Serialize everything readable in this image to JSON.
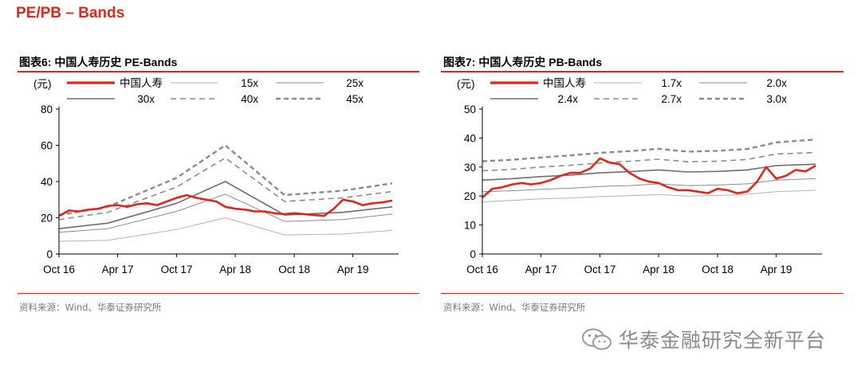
{
  "page_title": "PE/PB – Bands",
  "watermark": "华泰金融研究全新平台",
  "chart_data": [
    {
      "type": "line",
      "title": "图表6:  中国人寿历史 PE-Bands",
      "source": "资料来源：Wind、华泰证券研究所",
      "ylabel": "(元)",
      "ylim": [
        0,
        80
      ],
      "yticks": [
        0,
        20,
        40,
        60,
        80
      ],
      "xlim": [
        "2016-10-01",
        "2019-08-01"
      ],
      "x_ticks": [
        {
          "label": "Oct 16",
          "date": "2016-10-01"
        },
        {
          "label": "Apr 17",
          "date": "2017-04-01"
        },
        {
          "label": "Oct 17",
          "date": "2017-10-01"
        },
        {
          "label": "Apr 18",
          "date": "2018-04-01"
        },
        {
          "label": "Oct 18",
          "date": "2018-10-01"
        },
        {
          "label": "Apr 19",
          "date": "2019-04-01"
        }
      ],
      "grid": false,
      "legend": "top",
      "series": [
        {
          "name": "中国人寿",
          "color": "#e2261b",
          "style": "solid-thick",
          "points": [
            [
              "2016-10-01",
              21
            ],
            [
              "2016-11-01",
              24
            ],
            [
              "2016-12-01",
              23.5
            ],
            [
              "2017-01-01",
              24.5
            ],
            [
              "2017-02-01",
              25
            ],
            [
              "2017-03-01",
              26.5
            ],
            [
              "2017-04-01",
              27
            ],
            [
              "2017-05-01",
              26
            ],
            [
              "2017-06-01",
              27.5
            ],
            [
              "2017-07-01",
              28
            ],
            [
              "2017-08-01",
              27
            ],
            [
              "2017-09-01",
              29
            ],
            [
              "2017-10-01",
              31
            ],
            [
              "2017-11-01",
              32.5
            ],
            [
              "2017-12-01",
              31
            ],
            [
              "2018-01-01",
              30
            ],
            [
              "2018-02-01",
              29
            ],
            [
              "2018-03-01",
              26
            ],
            [
              "2018-04-01",
              25
            ],
            [
              "2018-05-01",
              24.5
            ],
            [
              "2018-06-01",
              23.5
            ],
            [
              "2018-07-01",
              23.5
            ],
            [
              "2018-08-01",
              22.5
            ],
            [
              "2018-09-01",
              22
            ],
            [
              "2018-10-01",
              22.5
            ],
            [
              "2018-11-01",
              22
            ],
            [
              "2018-12-01",
              21.5
            ],
            [
              "2019-01-01",
              21
            ],
            [
              "2019-02-01",
              25
            ],
            [
              "2019-03-01",
              30
            ],
            [
              "2019-04-01",
              29
            ],
            [
              "2019-05-01",
              27
            ],
            [
              "2019-06-01",
              28
            ],
            [
              "2019-07-01",
              28.5
            ],
            [
              "2019-08-01",
              29.5
            ]
          ]
        },
        {
          "name": "15x",
          "color": "#b4b4b4",
          "style": "solid-thin",
          "points": [
            [
              "2016-10-01",
              7
            ],
            [
              "2017-03-01",
              7.5
            ],
            [
              "2017-10-01",
              13.5
            ],
            [
              "2018-03-01",
              20
            ],
            [
              "2018-09-01",
              10.5
            ],
            [
              "2019-03-01",
              11
            ],
            [
              "2019-08-01",
              13
            ]
          ]
        },
        {
          "name": "25x",
          "color": "#8c8c8c",
          "style": "solid-thin",
          "points": [
            [
              "2016-10-01",
              12
            ],
            [
              "2017-03-01",
              14
            ],
            [
              "2017-10-01",
              23.5
            ],
            [
              "2018-03-01",
              33
            ],
            [
              "2018-09-01",
              18
            ],
            [
              "2019-03-01",
              19
            ],
            [
              "2019-08-01",
              22
            ]
          ]
        },
        {
          "name": "30x",
          "color": "#6e6e6e",
          "style": "solid-medium",
          "points": [
            [
              "2016-10-01",
              14
            ],
            [
              "2017-03-01",
              17
            ],
            [
              "2017-10-01",
              28
            ],
            [
              "2018-03-01",
              40
            ],
            [
              "2018-09-01",
              21.5
            ],
            [
              "2019-03-01",
              23
            ],
            [
              "2019-08-01",
              26
            ]
          ]
        },
        {
          "name": "40x",
          "color": "#8c8c8c",
          "style": "dashed",
          "points": [
            [
              "2016-10-01",
              19
            ],
            [
              "2017-03-01",
              23
            ],
            [
              "2017-10-01",
              37
            ],
            [
              "2018-03-01",
              53
            ],
            [
              "2018-09-01",
              29
            ],
            [
              "2019-03-01",
              31
            ],
            [
              "2019-08-01",
              34.5
            ]
          ]
        },
        {
          "name": "45x",
          "color": "#8c8c8c",
          "style": "dashed-thick",
          "points": [
            [
              "2016-10-01",
              21.5
            ],
            [
              "2017-03-01",
              26
            ],
            [
              "2017-10-01",
              42
            ],
            [
              "2018-03-01",
              60
            ],
            [
              "2018-09-01",
              32.5
            ],
            [
              "2019-03-01",
              35
            ],
            [
              "2019-08-01",
              39
            ]
          ]
        }
      ]
    },
    {
      "type": "line",
      "title": "图表7:  中国人寿历史 PB-Bands",
      "source": "资料来源：Wind、华泰证券研究所",
      "ylabel": "(元)",
      "ylim": [
        0,
        50
      ],
      "yticks": [
        0,
        10,
        20,
        30,
        40,
        50
      ],
      "xlim": [
        "2016-10-01",
        "2019-08-01"
      ],
      "x_ticks": [
        {
          "label": "Oct 16",
          "date": "2016-10-01"
        },
        {
          "label": "Apr 17",
          "date": "2017-04-01"
        },
        {
          "label": "Oct 17",
          "date": "2017-10-01"
        },
        {
          "label": "Apr 18",
          "date": "2018-04-01"
        },
        {
          "label": "Oct 18",
          "date": "2018-10-01"
        },
        {
          "label": "Apr 19",
          "date": "2019-04-01"
        }
      ],
      "grid": false,
      "legend": "top",
      "series": [
        {
          "name": "中国人寿",
          "color": "#e2261b",
          "style": "solid-thick",
          "points": [
            [
              "2016-10-01",
              19.5
            ],
            [
              "2016-11-01",
              22.5
            ],
            [
              "2016-12-01",
              23
            ],
            [
              "2017-01-01",
              24
            ],
            [
              "2017-02-01",
              24.5
            ],
            [
              "2017-03-01",
              24
            ],
            [
              "2017-04-01",
              24.5
            ],
            [
              "2017-05-01",
              25.5
            ],
            [
              "2017-06-01",
              27
            ],
            [
              "2017-07-01",
              28
            ],
            [
              "2017-08-01",
              28
            ],
            [
              "2017-09-01",
              29.5
            ],
            [
              "2017-10-01",
              33
            ],
            [
              "2017-11-01",
              31.5
            ],
            [
              "2017-12-01",
              31
            ],
            [
              "2018-01-01",
              28
            ],
            [
              "2018-02-01",
              26
            ],
            [
              "2018-03-01",
              25
            ],
            [
              "2018-04-01",
              24.5
            ],
            [
              "2018-05-01",
              23
            ],
            [
              "2018-06-01",
              22
            ],
            [
              "2018-07-01",
              22
            ],
            [
              "2018-08-01",
              21.5
            ],
            [
              "2018-09-01",
              21
            ],
            [
              "2018-10-01",
              22.5
            ],
            [
              "2018-11-01",
              22
            ],
            [
              "2018-12-01",
              21
            ],
            [
              "2019-01-01",
              21.5
            ],
            [
              "2019-02-01",
              25
            ],
            [
              "2019-03-01",
              30
            ],
            [
              "2019-04-01",
              26
            ],
            [
              "2019-05-01",
              27
            ],
            [
              "2019-06-01",
              29
            ],
            [
              "2019-07-01",
              28.5
            ],
            [
              "2019-08-01",
              30.5
            ]
          ]
        },
        {
          "name": "1.7x",
          "color": "#b4b4b4",
          "style": "solid-thin",
          "points": [
            [
              "2016-10-01",
              18
            ],
            [
              "2017-01-01",
              18.5
            ],
            [
              "2017-04-01",
              19
            ],
            [
              "2017-07-01",
              19.3
            ],
            [
              "2017-10-01",
              19.8
            ],
            [
              "2018-01-01",
              20.1
            ],
            [
              "2018-04-01",
              20.5
            ],
            [
              "2018-07-01",
              20
            ],
            [
              "2018-10-01",
              20.2
            ],
            [
              "2019-01-01",
              20.6
            ],
            [
              "2019-04-01",
              21.5
            ],
            [
              "2019-08-01",
              22
            ]
          ]
        },
        {
          "name": "2.0x",
          "color": "#8c8c8c",
          "style": "solid-thin",
          "points": [
            [
              "2016-10-01",
              21.5
            ],
            [
              "2017-01-01",
              21.8
            ],
            [
              "2017-04-01",
              22.3
            ],
            [
              "2017-07-01",
              22.7
            ],
            [
              "2017-10-01",
              23.3
            ],
            [
              "2018-01-01",
              23.6
            ],
            [
              "2018-04-01",
              24.2
            ],
            [
              "2018-07-01",
              23.6
            ],
            [
              "2018-10-01",
              23.8
            ],
            [
              "2019-01-01",
              24.2
            ],
            [
              "2019-04-01",
              25.5
            ],
            [
              "2019-08-01",
              26
            ]
          ]
        },
        {
          "name": "2.4x",
          "color": "#6e6e6e",
          "style": "solid-medium",
          "points": [
            [
              "2016-10-01",
              25.5
            ],
            [
              "2017-01-01",
              26
            ],
            [
              "2017-04-01",
              26.7
            ],
            [
              "2017-07-01",
              27.2
            ],
            [
              "2017-10-01",
              28
            ],
            [
              "2018-01-01",
              28.4
            ],
            [
              "2018-04-01",
              29
            ],
            [
              "2018-07-01",
              28.3
            ],
            [
              "2018-10-01",
              28.5
            ],
            [
              "2019-01-01",
              29
            ],
            [
              "2019-04-01",
              30.5
            ],
            [
              "2019-08-01",
              31
            ]
          ]
        },
        {
          "name": "2.7x",
          "color": "#8c8c8c",
          "style": "dashed",
          "points": [
            [
              "2016-10-01",
              28.7
            ],
            [
              "2017-01-01",
              29.2
            ],
            [
              "2017-04-01",
              30
            ],
            [
              "2017-07-01",
              30.6
            ],
            [
              "2017-10-01",
              31.4
            ],
            [
              "2018-01-01",
              32
            ],
            [
              "2018-04-01",
              32.7
            ],
            [
              "2018-07-01",
              31.8
            ],
            [
              "2018-10-01",
              32
            ],
            [
              "2019-01-01",
              32.6
            ],
            [
              "2019-04-01",
              34.5
            ],
            [
              "2019-08-01",
              35
            ]
          ]
        },
        {
          "name": "3.0x",
          "color": "#8c8c8c",
          "style": "dashed-thick",
          "points": [
            [
              "2016-10-01",
              32
            ],
            [
              "2017-01-01",
              32.5
            ],
            [
              "2017-04-01",
              33.3
            ],
            [
              "2017-07-01",
              34
            ],
            [
              "2017-10-01",
              34.9
            ],
            [
              "2018-01-01",
              35.5
            ],
            [
              "2018-04-01",
              36.3
            ],
            [
              "2018-07-01",
              35.3
            ],
            [
              "2018-10-01",
              35.6
            ],
            [
              "2019-01-01",
              36.2
            ],
            [
              "2019-04-01",
              38.5
            ],
            [
              "2019-08-01",
              39.5
            ]
          ]
        }
      ]
    }
  ]
}
